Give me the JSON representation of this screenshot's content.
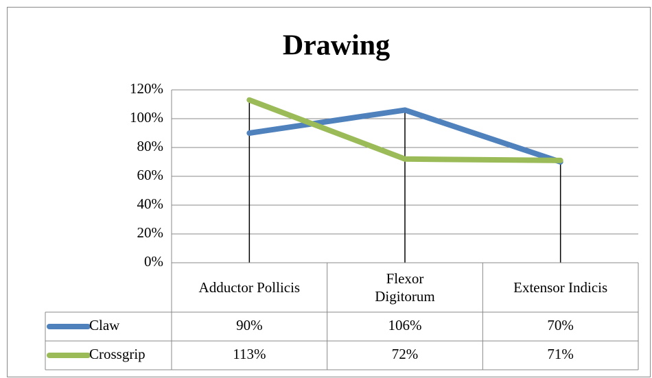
{
  "chart_data": {
    "type": "line",
    "title": "Drawing",
    "categories": [
      "Adductor Pollicis",
      "Flexor Digitorum",
      "Extensor Indicis"
    ],
    "series": [
      {
        "name": "Claw",
        "color": "#4f81bd",
        "values": [
          90,
          106,
          70
        ],
        "value_labels": [
          "90%",
          "106%",
          "70%"
        ]
      },
      {
        "name": "Crossgrip",
        "color": "#9bbb59",
        "values": [
          113,
          72,
          71
        ],
        "value_labels": [
          "113%",
          "72%",
          "71%"
        ]
      }
    ],
    "ylim": [
      0,
      120
    ],
    "yticks": [
      {
        "value": 0,
        "label": "0%"
      },
      {
        "value": 20,
        "label": "20%"
      },
      {
        "value": 40,
        "label": "40%"
      },
      {
        "value": 60,
        "label": "60%"
      },
      {
        "value": 80,
        "label": "80%"
      },
      {
        "value": 100,
        "label": "100%"
      },
      {
        "value": 120,
        "label": "120%"
      }
    ],
    "grid": true,
    "drop_lines": true,
    "data_table": true
  }
}
